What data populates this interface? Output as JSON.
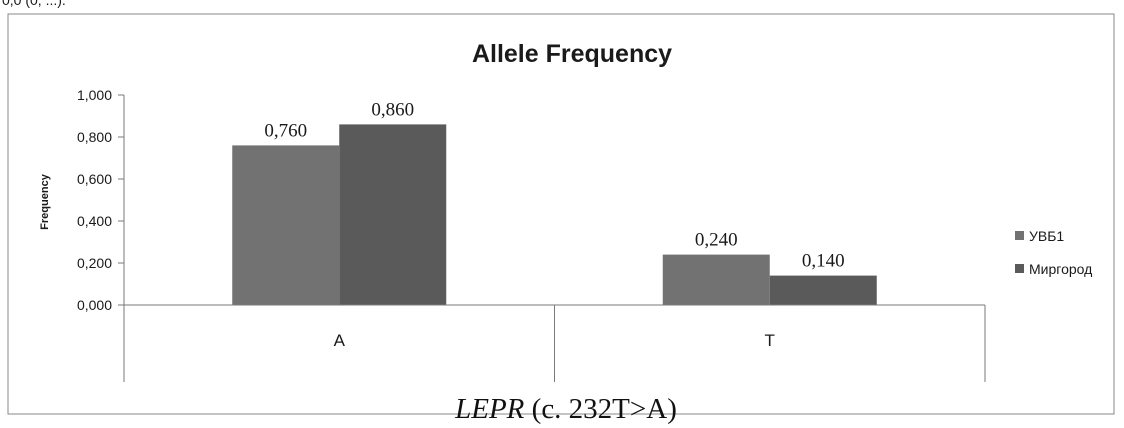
{
  "chart_data": {
    "type": "bar",
    "title": "Allele Frequency",
    "ylabel": "Frequency",
    "xlabel": "",
    "categories": [
      "A",
      "T"
    ],
    "series": [
      {
        "name": "УВБ1",
        "values": [
          0.76,
          0.24
        ],
        "labels": [
          "0,760",
          "0,240"
        ],
        "color": "#727272"
      },
      {
        "name": "Миргород",
        "values": [
          0.86,
          0.14
        ],
        "labels": [
          "0,860",
          "0,140"
        ],
        "color": "#5a5a5a"
      }
    ],
    "ylim": [
      0,
      1
    ],
    "yticks": [
      "0,000",
      "0,200",
      "0,400",
      "0,600",
      "0,800",
      "1,000"
    ],
    "grid": false,
    "legend": "right",
    "caption_gene": "LEPR",
    "caption_rest": " (c. 232T>A)",
    "top_fragment": "0,0 (0, ...)."
  }
}
